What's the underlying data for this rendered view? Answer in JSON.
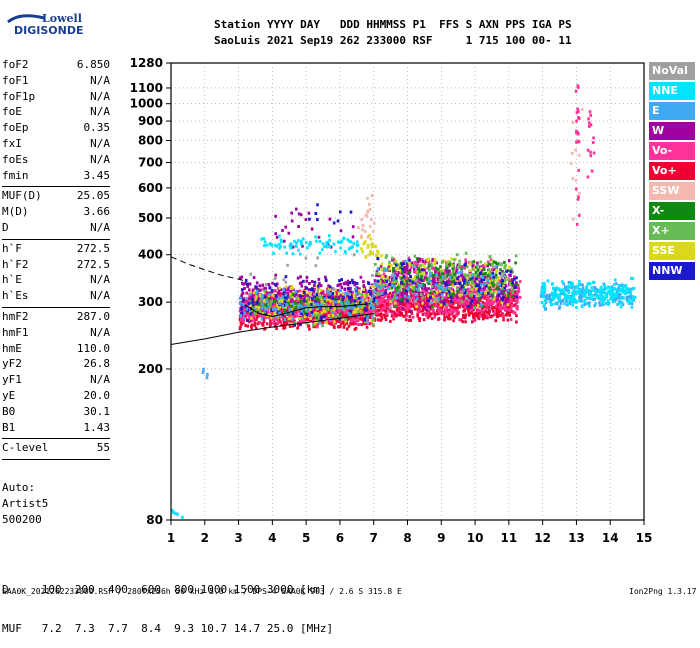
{
  "logo": {
    "line1": "Lowell",
    "line2": "DIGISONDE"
  },
  "header": {
    "line1": "Station YYYY DAY   DDD HHMMSS P1  FFS S AXN PPS IGA PS",
    "line2": "SaoLuis 2021 Sep19 262 233000 RSF     1 715 100 00- 11"
  },
  "params_group1": [
    {
      "name": "foF2",
      "value": "6.850"
    },
    {
      "name": "foF1",
      "value": "N/A"
    },
    {
      "name": "foF1p",
      "value": "N/A"
    },
    {
      "name": "foE",
      "value": "N/A"
    },
    {
      "name": "foEp",
      "value": "0.35"
    },
    {
      "name": "fxI",
      "value": "N/A"
    },
    {
      "name": "foEs",
      "value": "N/A"
    },
    {
      "name": "fmin",
      "value": "3.45"
    }
  ],
  "params_group2": [
    {
      "name": "MUF(D)",
      "value": "25.05"
    },
    {
      "name": "M(D)",
      "value": "3.66"
    },
    {
      "name": "D",
      "value": "N/A"
    }
  ],
  "params_group3": [
    {
      "name": "h`F",
      "value": "272.5"
    },
    {
      "name": "h`F2",
      "value": "272.5"
    },
    {
      "name": "h`E",
      "value": "N/A"
    },
    {
      "name": "h`Es",
      "value": "N/A"
    }
  ],
  "params_group4": [
    {
      "name": "hmF2",
      "value": "287.0"
    },
    {
      "name": "hmF1",
      "value": "N/A"
    },
    {
      "name": "hmE",
      "value": "110.0"
    },
    {
      "name": "yF2",
      "value": "26.8"
    },
    {
      "name": "yF1",
      "value": "N/A"
    },
    {
      "name": "yE",
      "value": "20.0"
    },
    {
      "name": "B0",
      "value": "30.1"
    },
    {
      "name": "B1",
      "value": "1.43"
    }
  ],
  "params_group5": [
    {
      "name": "C-level",
      "value": "55"
    }
  ],
  "auto": {
    "line1": "Auto:",
    "line2": "Artist5",
    "line3": "500200"
  },
  "dmuf": {
    "d_line": "D     100  200  400  600  800 1000 1500 3000 [km]",
    "muf_line": "MUF   7.2  7.3  7.7  8.4  9.3 10.7 14.7 25.0 [MHz]"
  },
  "footer": {
    "left": "SAA0K_2021262233000.RSF / 280fx256h 50 kHz 5.0 km / DPS-4 SAA0K 903 / 2.6 S 315.8 E",
    "right": "Ion2Png 1.3.17"
  },
  "legend": [
    {
      "label": "NoVal",
      "color": "#a0a0a0"
    },
    {
      "label": "NNE",
      "color": "#00e5ff"
    },
    {
      "label": "E",
      "color": "#3fa9f5"
    },
    {
      "label": "W",
      "color": "#a000a0"
    },
    {
      "label": "Vo-",
      "color": "#ff3399"
    },
    {
      "label": "Vo+",
      "color": "#ee0033"
    },
    {
      "label": "SSW",
      "color": "#f4b8b0"
    },
    {
      "label": "X-",
      "color": "#118811"
    },
    {
      "label": "X+",
      "color": "#66bb55"
    },
    {
      "label": "SSE",
      "color": "#d9d91a"
    },
    {
      "label": "NNW",
      "color": "#1a1acc"
    }
  ],
  "chart_data": {
    "type": "scatter",
    "title": "",
    "xlabel": "",
    "ylabel": "",
    "xlim": [
      1,
      15
    ],
    "ylim": [
      80,
      1280
    ],
    "x_scale": "linear",
    "y_scale": "log",
    "x_ticks": [
      1,
      2,
      3,
      4,
      5,
      6,
      7,
      8,
      9,
      10,
      11,
      12,
      13,
      14,
      15
    ],
    "y_ticks": [
      80,
      200,
      300,
      400,
      500,
      600,
      700,
      800,
      900,
      1000,
      1100,
      1280
    ],
    "grid": true,
    "series": [
      {
        "color": "#ee0033",
        "clusters": [
          {
            "x": [
              3.0,
              7.0
            ],
            "y": [
              255,
              315
            ],
            "n": 900
          },
          {
            "x": [
              7.0,
              11.2
            ],
            "y": [
              265,
              330
            ],
            "n": 700
          },
          {
            "x": [
              3.2,
              6.8
            ],
            "y": [
              280,
              330
            ],
            "n": 300
          }
        ]
      },
      {
        "color": "#ff3399",
        "clusters": [
          {
            "x": [
              3.0,
              7.0
            ],
            "y": [
              260,
              330
            ],
            "n": 420
          },
          {
            "x": [
              7.0,
              11.3
            ],
            "y": [
              270,
              360
            ],
            "n": 520
          },
          {
            "x": [
              7.5,
              10.5
            ],
            "y": [
              330,
              400
            ],
            "n": 120
          }
        ]
      },
      {
        "color": "#a000a0",
        "clusters": [
          {
            "x": [
              3.0,
              7.0
            ],
            "y": [
              270,
              360
            ],
            "n": 260
          },
          {
            "x": [
              7.0,
              11.2
            ],
            "y": [
              280,
              400
            ],
            "n": 320
          },
          {
            "x": [
              4.0,
              6.5
            ],
            "y": [
              400,
              560
            ],
            "n": 25
          }
        ]
      },
      {
        "color": "#d9d91a",
        "clusters": [
          {
            "x": [
              3.3,
              7.0
            ],
            "y": [
              260,
              340
            ],
            "n": 200
          },
          {
            "x": [
              7.0,
              11.0
            ],
            "y": [
              290,
              410
            ],
            "n": 180
          },
          {
            "x": [
              6.6,
              7.1
            ],
            "y": [
              380,
              470
            ],
            "n": 25
          }
        ]
      },
      {
        "color": "#66bb55",
        "clusters": [
          {
            "x": [
              3.3,
              7.0
            ],
            "y": [
              260,
              330
            ],
            "n": 110
          },
          {
            "x": [
              7.0,
              11.2
            ],
            "y": [
              290,
              410
            ],
            "n": 170
          }
        ]
      },
      {
        "color": "#118811",
        "clusters": [
          {
            "x": [
              7.5,
              11.2
            ],
            "y": [
              290,
              400
            ],
            "n": 110
          },
          {
            "x": [
              3.5,
              6.5
            ],
            "y": [
              270,
              320
            ],
            "n": 50
          }
        ]
      },
      {
        "color": "#1a1acc",
        "clusters": [
          {
            "x": [
              3.0,
              7.0
            ],
            "y": [
              260,
              360
            ],
            "n": 110
          },
          {
            "x": [
              7.0,
              11.2
            ],
            "y": [
              290,
              400
            ],
            "n": 80
          },
          {
            "x": [
              4.5,
              6.5
            ],
            "y": [
              480,
              560
            ],
            "n": 8
          }
        ]
      },
      {
        "color": "#3fa9f5",
        "clusters": [
          {
            "x": [
              3.0,
              7.0
            ],
            "y": [
              260,
              330
            ],
            "n": 90
          },
          {
            "x": [
              7.0,
              11.0
            ],
            "y": [
              290,
              390
            ],
            "n": 60
          },
          {
            "x": [
              11.9,
              14.7
            ],
            "y": [
              285,
              345
            ],
            "n": 190
          },
          {
            "x": [
              1.9,
              2.1
            ],
            "y": [
              190,
              205
            ],
            "n": 4
          }
        ]
      },
      {
        "color": "#00e5ff",
        "clusters": [
          {
            "x": [
              3.5,
              6.5
            ],
            "y": [
              400,
              460
            ],
            "n": 80
          },
          {
            "x": [
              11.9,
              14.7
            ],
            "y": [
              290,
              350
            ],
            "n": 220
          },
          {
            "x": [
              0.99,
              1.3
            ],
            "y": [
              80,
              88
            ],
            "n": 6
          }
        ]
      },
      {
        "color": "#f4b8b0",
        "clusters": [
          {
            "x": [
              6.5,
              7.0
            ],
            "y": [
              420,
              590
            ],
            "n": 20
          },
          {
            "x": [
              12.8,
              13.2
            ],
            "y": [
              250,
              1230
            ],
            "n": 12
          }
        ]
      },
      {
        "color": "#a0a0a0",
        "clusters": [
          {
            "x": [
              3.0,
              11.0
            ],
            "y": [
              280,
              420
            ],
            "n": 30
          }
        ]
      },
      {
        "color": "#ff3399",
        "clusters": [
          {
            "x": [
              12.95,
              13.05
            ],
            "y": [
              420,
              1250
            ],
            "n": 22
          },
          {
            "x": [
              13.3,
              13.5
            ],
            "y": [
              600,
              1020
            ],
            "n": 14
          }
        ]
      }
    ],
    "lines": [
      {
        "style": "dashed",
        "x": [
          1.0,
          1.5,
          2.0,
          2.5,
          3.0,
          3.1,
          3.2
        ],
        "y": [
          395,
          378,
          365,
          353,
          345,
          343,
          342
        ]
      },
      {
        "style": "solid",
        "x": [
          1.0,
          2.0,
          3.0,
          4.0,
          5.0,
          6.0,
          7.0
        ],
        "y": [
          232,
          240,
          250,
          258,
          265,
          272,
          280
        ]
      },
      {
        "style": "solid",
        "x": [
          3.2,
          3.6,
          4.0,
          4.5,
          5.0,
          5.5,
          6.0,
          6.5,
          6.9
        ],
        "y": [
          295,
          280,
          275,
          282,
          290,
          292,
          292,
          295,
          297
        ]
      }
    ]
  }
}
